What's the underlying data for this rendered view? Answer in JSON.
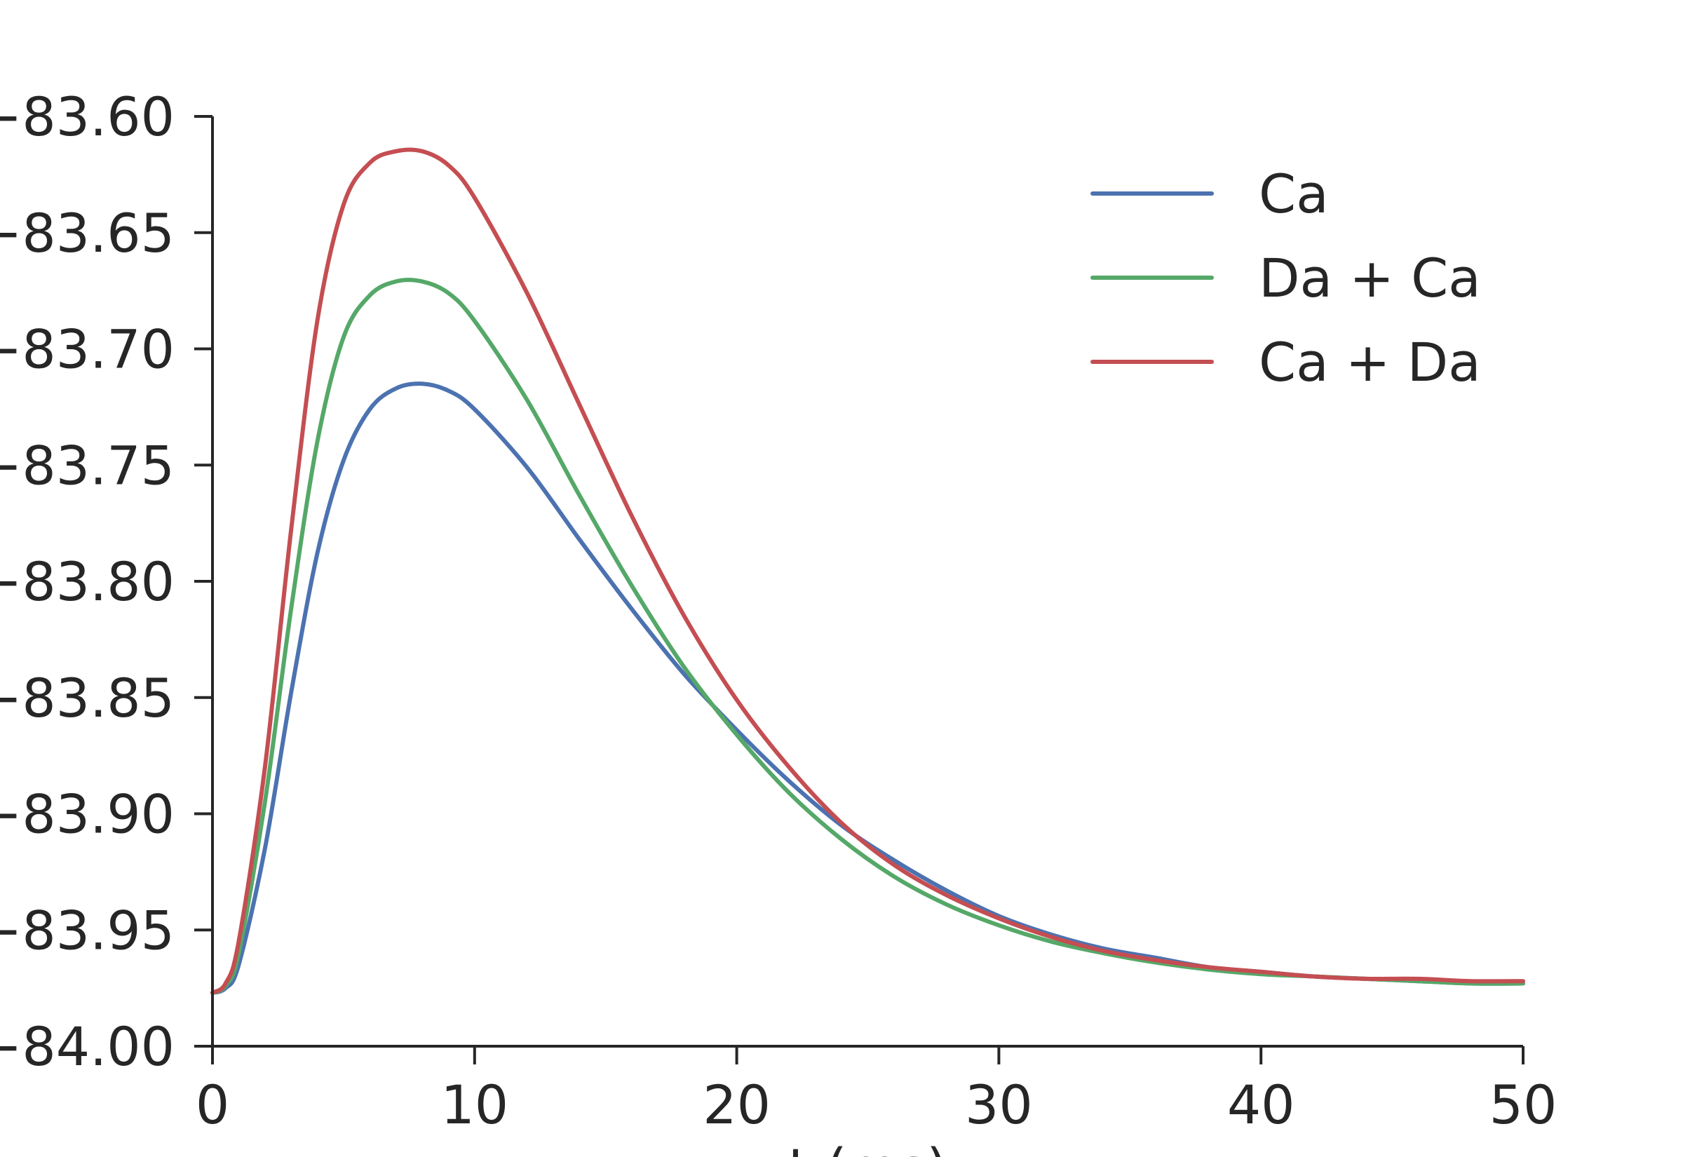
{
  "chart_data": {
    "type": "line",
    "title": "",
    "xlabel": "t (ms)",
    "ylabel": "",
    "xlim": [
      0,
      50
    ],
    "ylim": [
      -84.0,
      -83.6
    ],
    "xticks": [
      0,
      10,
      20,
      30,
      40,
      50
    ],
    "xtick_labels": [
      "0",
      "10",
      "20",
      "30",
      "40",
      "50"
    ],
    "yticks": [
      -83.6,
      -83.65,
      -83.7,
      -83.75,
      -83.8,
      -83.85,
      -83.9,
      -83.95,
      -84.0
    ],
    "ytick_labels": [
      "−83.60",
      "−83.65",
      "−83.70",
      "−83.75",
      "−83.80",
      "−83.85",
      "−83.90",
      "−83.95",
      "−84.00"
    ],
    "grid": false,
    "legend_position": "top-right",
    "series": [
      {
        "name": "Ca",
        "color": "#4c72b0",
        "x": [
          0,
          0.5,
          1,
          2,
          3,
          4,
          5,
          6,
          7,
          8,
          9,
          10,
          12,
          14,
          16,
          18,
          20,
          22,
          24,
          26,
          28,
          30,
          32,
          34,
          36,
          38,
          40,
          42,
          44,
          46,
          48,
          50
        ],
        "y": [
          -83.977,
          -83.975,
          -83.965,
          -83.915,
          -83.848,
          -83.788,
          -83.748,
          -83.726,
          -83.717,
          -83.715,
          -83.718,
          -83.726,
          -83.751,
          -83.782,
          -83.812,
          -83.84,
          -83.864,
          -83.886,
          -83.905,
          -83.92,
          -83.933,
          -83.944,
          -83.952,
          -83.958,
          -83.962,
          -83.966,
          -83.968,
          -83.97,
          -83.971,
          -83.972,
          -83.973,
          -83.973
        ]
      },
      {
        "name": "Da + Ca",
        "color": "#55a868",
        "x": [
          0,
          0.5,
          1,
          2,
          3,
          4,
          5,
          6,
          7,
          8,
          9,
          10,
          12,
          14,
          16,
          18,
          20,
          22,
          24,
          26,
          28,
          30,
          32,
          34,
          36,
          38,
          40,
          42,
          44,
          46,
          48,
          50
        ],
        "y": [
          -83.977,
          -83.974,
          -83.96,
          -83.895,
          -83.812,
          -83.74,
          -83.695,
          -83.677,
          -83.671,
          -83.671,
          -83.676,
          -83.688,
          -83.722,
          -83.763,
          -83.802,
          -83.837,
          -83.866,
          -83.891,
          -83.911,
          -83.927,
          -83.939,
          -83.948,
          -83.955,
          -83.96,
          -83.964,
          -83.967,
          -83.969,
          -83.97,
          -83.971,
          -83.972,
          -83.973,
          -83.973
        ]
      },
      {
        "name": "Ca + Da",
        "color": "#c44e52",
        "x": [
          0,
          0.5,
          1,
          2,
          3,
          4,
          5,
          6,
          7,
          8,
          9,
          10,
          12,
          14,
          16,
          18,
          20,
          22,
          24,
          26,
          28,
          30,
          32,
          34,
          36,
          38,
          40,
          42,
          44,
          46,
          48,
          50
        ],
        "y": [
          -83.977,
          -83.973,
          -83.955,
          -83.88,
          -83.778,
          -83.688,
          -83.638,
          -83.62,
          -83.615,
          -83.615,
          -83.621,
          -83.635,
          -83.676,
          -83.724,
          -83.772,
          -83.815,
          -83.851,
          -83.88,
          -83.904,
          -83.922,
          -83.935,
          -83.945,
          -83.953,
          -83.959,
          -83.963,
          -83.966,
          -83.968,
          -83.97,
          -83.971,
          -83.971,
          -83.972,
          -83.972
        ]
      }
    ]
  }
}
